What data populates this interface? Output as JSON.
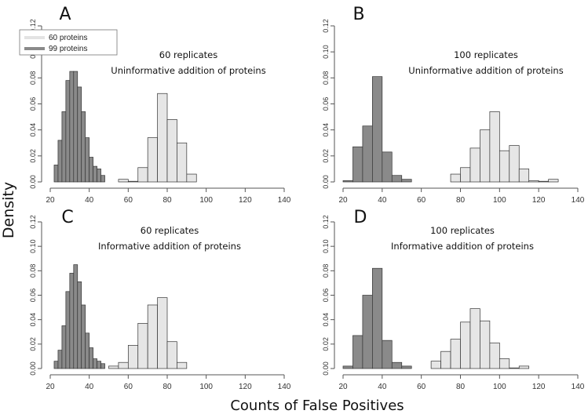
{
  "figure": {
    "ylabel": "Density",
    "xlabel": "Counts of False Positives"
  },
  "legend": {
    "entries": [
      {
        "label": "60 proteins",
        "color": "#e3e3e3"
      },
      {
        "label": "99 proteins",
        "color": "#8a8a8a"
      }
    ],
    "placement": "top-left of panel A"
  },
  "colors": {
    "dark": "#8a8a8a",
    "light": "#e6e6e6",
    "stroke": "#333333",
    "axis": "#555555"
  },
  "chart_data": [
    {
      "type": "bar",
      "panel_letter": "A",
      "annotation": [
        "60 replicates",
        "Uninformative addition of proteins"
      ],
      "xlim": [
        20,
        140
      ],
      "ylim": [
        0,
        0.12
      ],
      "xticks": [
        "20",
        "40",
        "60",
        "80",
        "100",
        "120",
        "140"
      ],
      "yticks": [
        "0.00",
        "0.02",
        "0.04",
        "0.06",
        "0.08",
        "0.10",
        "0.12"
      ],
      "series": [
        {
          "name": "99 proteins",
          "bin_width": 2,
          "x": [
            22,
            24,
            26,
            28,
            30,
            32,
            34,
            36,
            38,
            40,
            42,
            44,
            46
          ],
          "values": [
            0.013,
            0.032,
            0.054,
            0.078,
            0.085,
            0.085,
            0.073,
            0.054,
            0.034,
            0.019,
            0.012,
            0.01,
            0.005
          ]
        },
        {
          "name": "60 proteins",
          "bin_width": 5,
          "x": [
            55,
            60,
            65,
            70,
            75,
            80,
            85,
            90
          ],
          "values": [
            0.002,
            0,
            0.011,
            0.034,
            0.068,
            0.048,
            0.03,
            0.006
          ]
        }
      ]
    },
    {
      "type": "bar",
      "panel_letter": "B",
      "annotation": [
        "100 replicates",
        "Uninformative addition of proteins"
      ],
      "xlim": [
        20,
        140
      ],
      "ylim": [
        0,
        0.12
      ],
      "xticks": [
        "20",
        "40",
        "60",
        "80",
        "100",
        "120",
        "140"
      ],
      "yticks": [
        "0.00",
        "0.02",
        "0.04",
        "0.06",
        "0.08",
        "0.10",
        "0.12"
      ],
      "series": [
        {
          "name": "99 proteins",
          "bin_width": 5,
          "x": [
            20,
            25,
            30,
            35,
            40,
            45,
            50
          ],
          "values": [
            0.001,
            0.027,
            0.043,
            0.081,
            0.023,
            0.005,
            0.002
          ]
        },
        {
          "name": "60 proteins",
          "bin_width": 5,
          "x": [
            75,
            80,
            85,
            90,
            95,
            100,
            105,
            110,
            115,
            120,
            125
          ],
          "values": [
            0.006,
            0.011,
            0.026,
            0.04,
            0.054,
            0.024,
            0.028,
            0.01,
            0.001,
            0,
            0.002
          ]
        }
      ]
    },
    {
      "type": "bar",
      "panel_letter": "C",
      "annotation": [
        "60 replicates",
        "Informative addition of proteins"
      ],
      "xlim": [
        20,
        140
      ],
      "ylim": [
        0,
        0.12
      ],
      "xticks": [
        "20",
        "40",
        "60",
        "80",
        "100",
        "120",
        "140"
      ],
      "yticks": [
        "0.00",
        "0.02",
        "0.04",
        "0.06",
        "0.08",
        "0.10",
        "0.12"
      ],
      "series": [
        {
          "name": "99 proteins",
          "bin_width": 2,
          "x": [
            22,
            24,
            26,
            28,
            30,
            32,
            34,
            36,
            38,
            40,
            42,
            44,
            46
          ],
          "values": [
            0.006,
            0.015,
            0.035,
            0.063,
            0.078,
            0.085,
            0.071,
            0.052,
            0.029,
            0.017,
            0.008,
            0.006,
            0.004
          ]
        },
        {
          "name": "60 proteins",
          "bin_width": 5,
          "x": [
            50,
            55,
            60,
            65,
            70,
            75,
            80,
            85
          ],
          "values": [
            0.002,
            0.005,
            0.019,
            0.037,
            0.052,
            0.058,
            0.022,
            0.005
          ]
        }
      ]
    },
    {
      "type": "bar",
      "panel_letter": "D",
      "annotation": [
        "100 replicates",
        "Informative addition of proteins"
      ],
      "xlim": [
        20,
        140
      ],
      "ylim": [
        0,
        0.12
      ],
      "xticks": [
        "20",
        "40",
        "60",
        "80",
        "100",
        "120",
        "140"
      ],
      "yticks": [
        "0.00",
        "0.02",
        "0.04",
        "0.06",
        "0.08",
        "0.10",
        "0.12"
      ],
      "series": [
        {
          "name": "99 proteins",
          "bin_width": 5,
          "x": [
            20,
            25,
            30,
            35,
            40,
            45,
            50
          ],
          "values": [
            0.002,
            0.027,
            0.06,
            0.082,
            0.023,
            0.005,
            0.002
          ]
        },
        {
          "name": "60 proteins",
          "bin_width": 5,
          "x": [
            65,
            70,
            75,
            80,
            85,
            90,
            95,
            100,
            105,
            110
          ],
          "values": [
            0.006,
            0.014,
            0.024,
            0.038,
            0.049,
            0.039,
            0.021,
            0.008,
            0,
            0.002
          ]
        }
      ]
    }
  ]
}
